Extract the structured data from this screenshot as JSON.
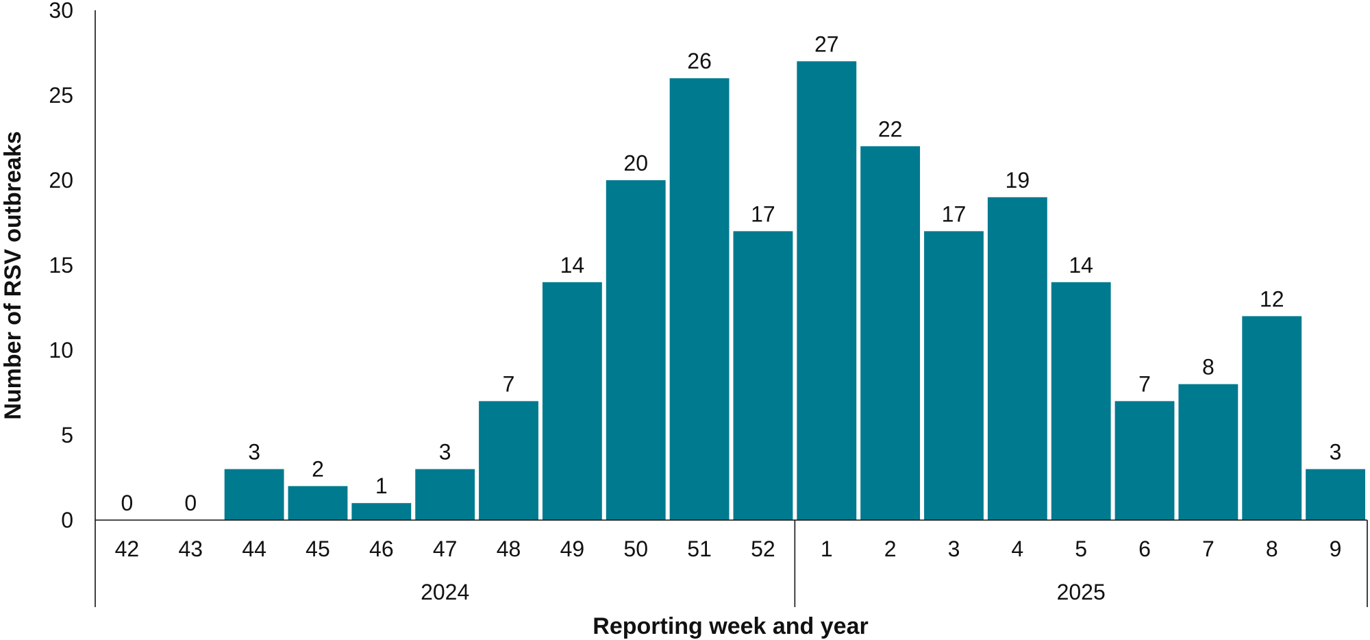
{
  "chart_data": {
    "type": "bar",
    "categories": [
      "42",
      "43",
      "44",
      "45",
      "46",
      "47",
      "48",
      "49",
      "50",
      "51",
      "52",
      "1",
      "2",
      "3",
      "4",
      "5",
      "6",
      "7",
      "8",
      "9"
    ],
    "values": [
      0,
      0,
      3,
      2,
      1,
      3,
      7,
      14,
      20,
      26,
      17,
      27,
      22,
      17,
      19,
      14,
      7,
      8,
      12,
      3
    ],
    "groups": [
      {
        "label": "2024",
        "start": 0,
        "end": 10
      },
      {
        "label": "2025",
        "start": 11,
        "end": 19
      }
    ],
    "xlabel": "Reporting week and year",
    "ylabel": "Number of RSV outbreaks",
    "ylim": [
      0,
      30
    ],
    "yticks": [
      0,
      5,
      10,
      15,
      20,
      25,
      30
    ],
    "data_labels": true,
    "grid": false,
    "legend": "none",
    "bar_color": "#007a8f"
  }
}
